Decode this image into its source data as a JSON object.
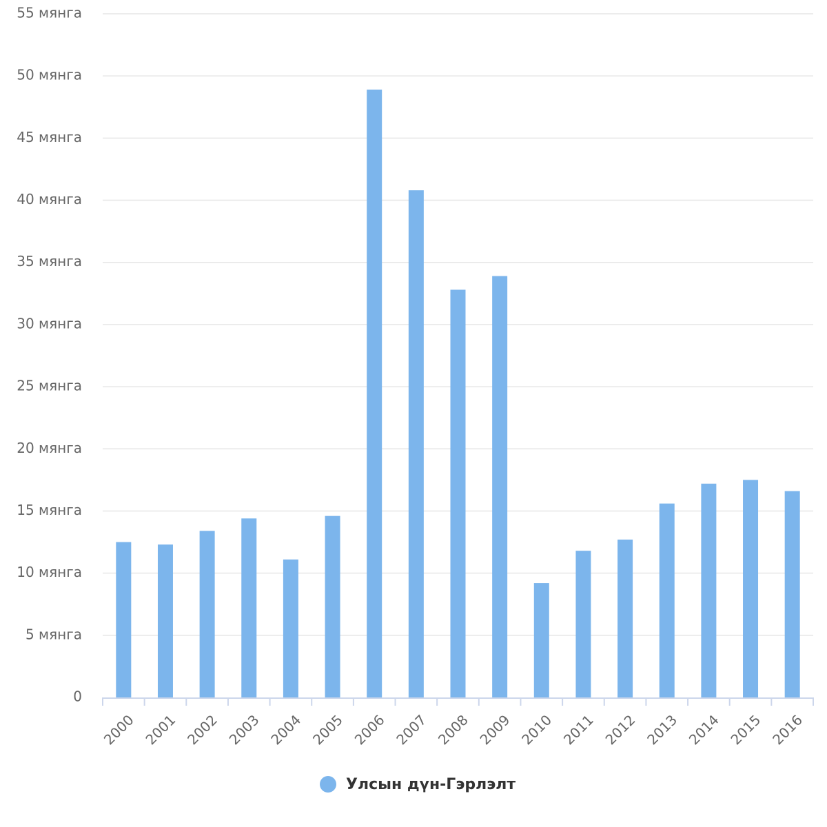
{
  "chart_data": {
    "type": "bar",
    "categories": [
      "2000",
      "2001",
      "2002",
      "2003",
      "2004",
      "2005",
      "2006",
      "2007",
      "2008",
      "2009",
      "2010",
      "2011",
      "2012",
      "2013",
      "2014",
      "2015",
      "2016"
    ],
    "series": [
      {
        "name": "Улсын дүн-Гэрлэлт",
        "color": "#7cb5ec",
        "values": [
          12500,
          12300,
          13400,
          14400,
          11100,
          14600,
          48900,
          40800,
          32800,
          33900,
          9200,
          11800,
          12700,
          15600,
          17200,
          17500,
          16600
        ]
      }
    ],
    "ylim": [
      0,
      55000
    ],
    "yticks": [
      0,
      {
        "value": 5000,
        "label": "5 мянга"
      },
      {
        "value": 10000,
        "label": "10 мянга"
      },
      {
        "value": 15000,
        "label": "15 мянга"
      },
      {
        "value": 20000,
        "label": "20 мянга"
      },
      {
        "value": 25000,
        "label": "25 мянга"
      },
      {
        "value": 30000,
        "label": "30 мянга"
      },
      {
        "value": 35000,
        "label": "35 мянга"
      },
      {
        "value": 40000,
        "label": "40 мянга"
      },
      {
        "value": 45000,
        "label": "45 мянга"
      },
      {
        "value": 50000,
        "label": "50 мянга"
      },
      {
        "value": 55000,
        "label": "55 мянга"
      }
    ],
    "grid": true,
    "legend": "bottom"
  }
}
